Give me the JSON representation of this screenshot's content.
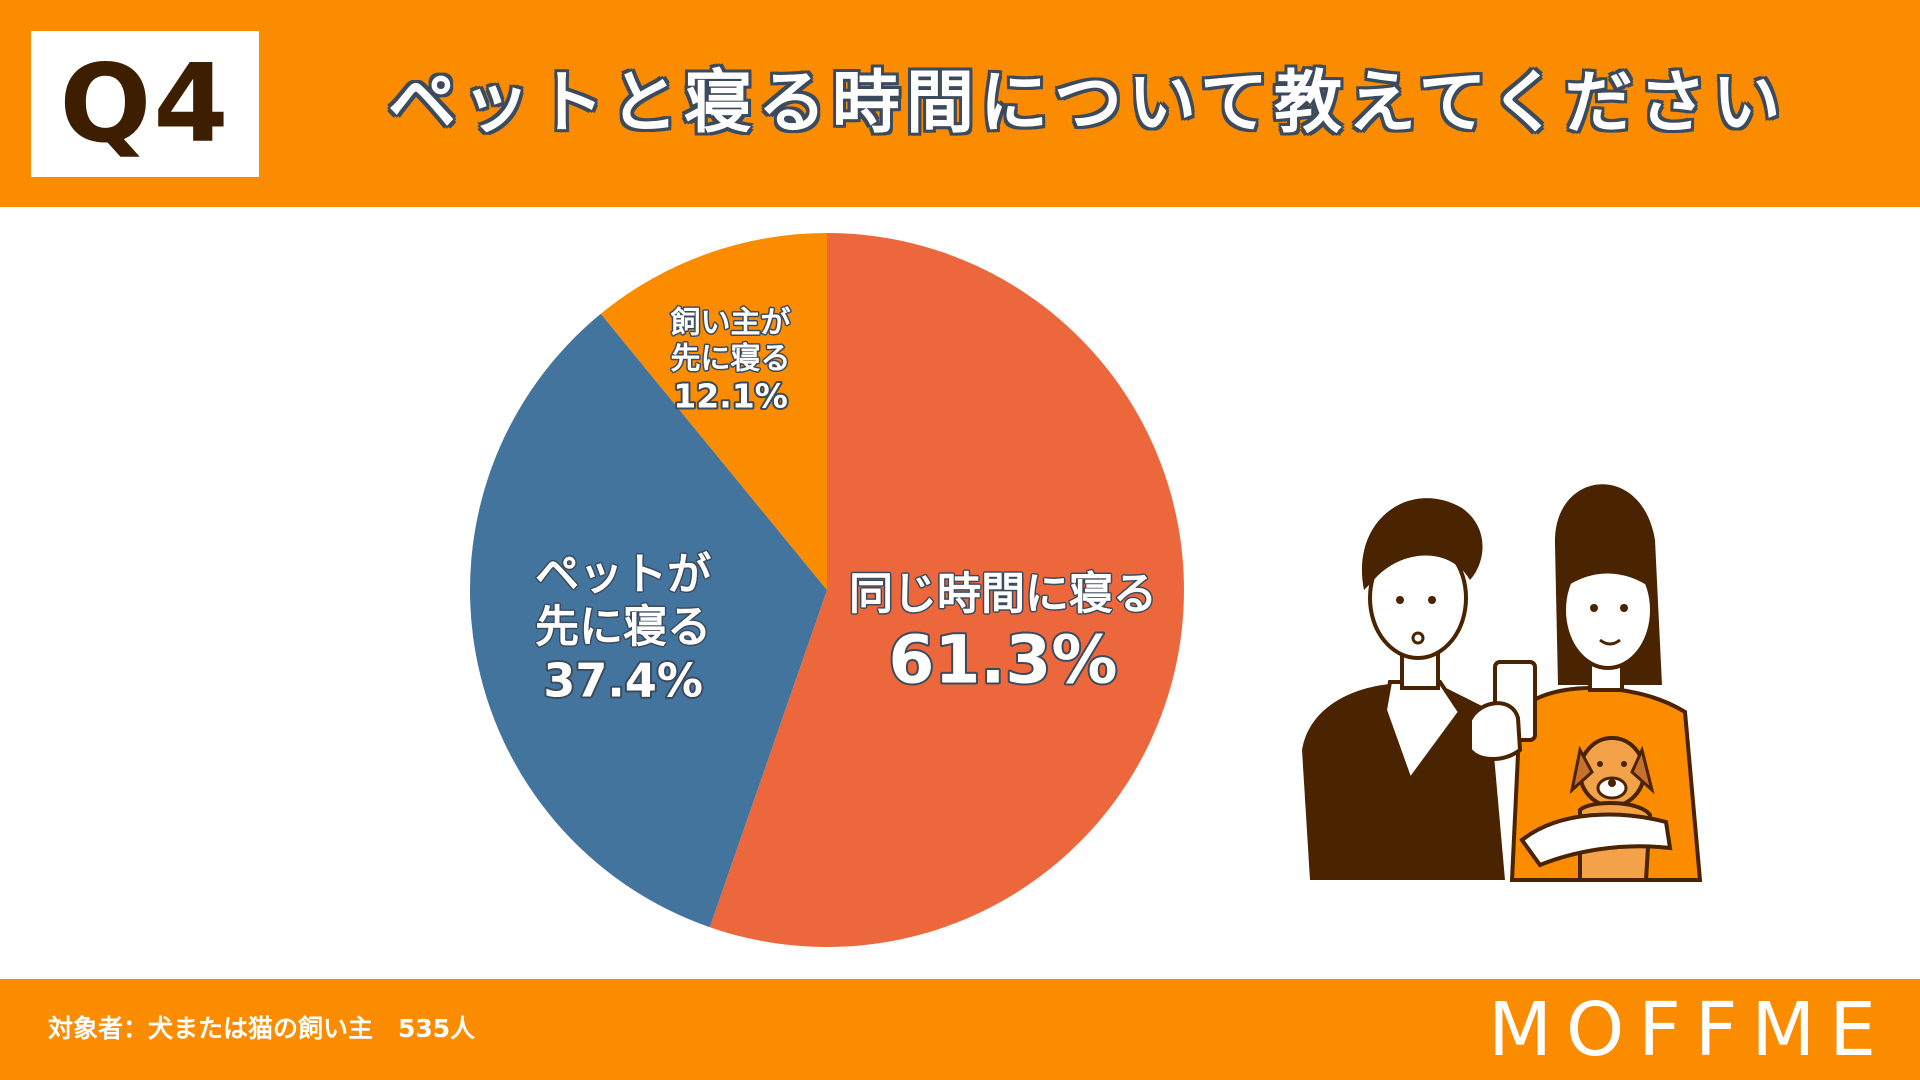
{
  "header": {
    "question_label": "Q4",
    "title": "ペットと寝る時間について教えてください"
  },
  "footer": {
    "footnote": "対象者：犬または猫の飼い主　535人",
    "brand": "MOFFME"
  },
  "colors": {
    "header_bg": "#fb8c00",
    "slice_same_time": "#ed673d",
    "slice_pet_first": "#43749e",
    "slice_owner_first": "#fb8c00",
    "label_outline": "#3b4a5c"
  },
  "illustration": {
    "icon": "couple-with-phone-and-dog-illustration"
  },
  "chart_data": {
    "type": "pie",
    "slices": [
      {
        "label_lines": [
          "同じ時間に寝る"
        ],
        "value": 61.3,
        "value_label": "61.3%",
        "color": "#ed673d"
      },
      {
        "label_lines": [
          "ペットが",
          "先に寝る"
        ],
        "value": 37.4,
        "value_label": "37.4%",
        "color": "#43749e"
      },
      {
        "label_lines": [
          "飼い主が",
          "先に寝る"
        ],
        "value": 12.1,
        "value_label": "12.1%",
        "color": "#fb8c00"
      }
    ]
  }
}
